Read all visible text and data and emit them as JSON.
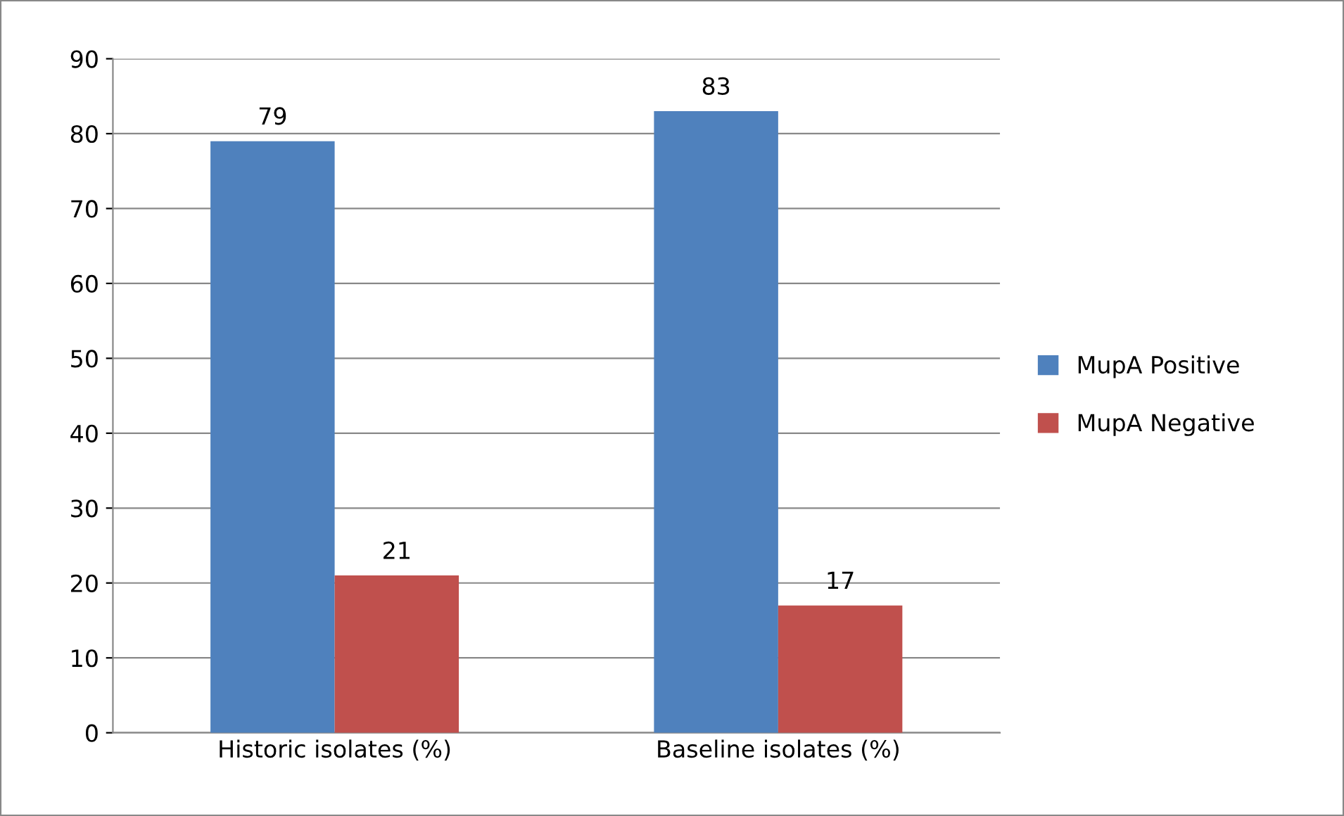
{
  "chart_data": {
    "type": "bar",
    "categories": [
      "Historic isolates (%)",
      "Baseline isolates (%)"
    ],
    "series": [
      {
        "name": "MupA Positive",
        "color": "#4f81bd",
        "values": [
          79,
          83
        ]
      },
      {
        "name": "MupA Negative",
        "color": "#c0504d",
        "values": [
          21,
          17
        ]
      }
    ],
    "ylim": [
      0,
      90
    ],
    "yticks": [
      0,
      10,
      20,
      30,
      40,
      50,
      60,
      70,
      80,
      90
    ],
    "grid": "y",
    "legend": "right",
    "data_labels": true
  }
}
